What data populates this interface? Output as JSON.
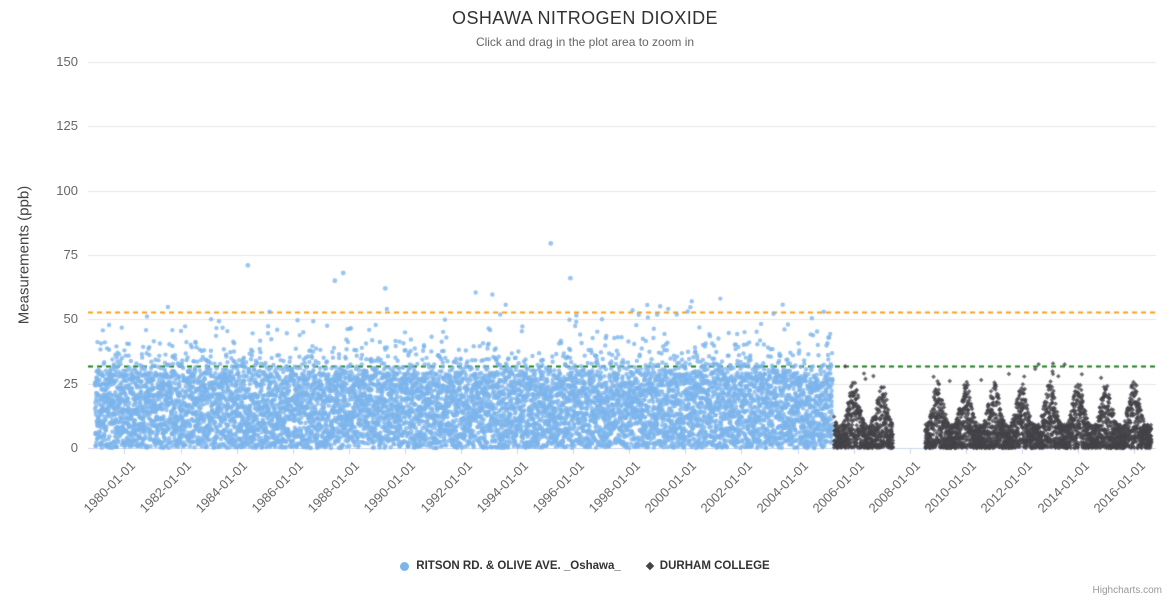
{
  "chart_data": {
    "type": "scatter",
    "title": "OSHAWA NITROGEN DIOXIDE",
    "subtitle": "Click and drag in the plot area to zoom in",
    "ylabel": "Measurements (ppb)",
    "xlabel": "",
    "ylim": [
      0,
      150
    ],
    "yticks": [
      0,
      25,
      50,
      75,
      100,
      125,
      150
    ],
    "xlim_years": [
      1978.7,
      2016.78
    ],
    "xtick_labels": [
      "1980-01-01",
      "1982-01-01",
      "1984-01-01",
      "1986-01-01",
      "1988-01-01",
      "1990-01-01",
      "1992-01-01",
      "1994-01-01",
      "1996-01-01",
      "1998-01-01",
      "2000-01-01",
      "2002-01-01",
      "2004-01-01",
      "2006-01-01",
      "2008-01-01",
      "2010-01-01",
      "2012-01-01",
      "2014-01-01",
      "2016-01-01"
    ],
    "grid": "horizontal",
    "legend_position": "bottom-center",
    "plot_lines": [
      {
        "value": 53,
        "color": "#f9a01b",
        "dash": "dash"
      },
      {
        "value": 32,
        "color": "#1e7d1e",
        "dash": "dash"
      }
    ],
    "series": [
      {
        "name": "RITSON RD. & OLIVE AVE. _Oshawa_",
        "marker": "circle",
        "color": "#7cb5ec",
        "x_start": 1978.95,
        "x_end": 2005.25,
        "points": 9000,
        "band_max": 29,
        "tail_prob": 0.1,
        "tail_scale": 5.5,
        "y_cap_early": 80,
        "y_cap_late": 60,
        "highlights": [
          [
            1984.4,
            71
          ],
          [
            1987.5,
            65
          ],
          [
            1987.8,
            68
          ],
          [
            1995.2,
            79.5
          ],
          [
            1995.9,
            66
          ],
          [
            1989.3,
            62
          ]
        ]
      },
      {
        "name": "DURHAM COLLEGE",
        "marker": "diamond",
        "color": "#434348",
        "x_start": 2005.3,
        "x_end": 2016.62,
        "gap": [
          2007.4,
          2008.55
        ],
        "points": 3800,
        "season_base": 9,
        "season_amp": 17,
        "outlier_prob": 0.006,
        "y_max_observed": 33
      }
    ]
  },
  "credit": "Highcharts.com"
}
